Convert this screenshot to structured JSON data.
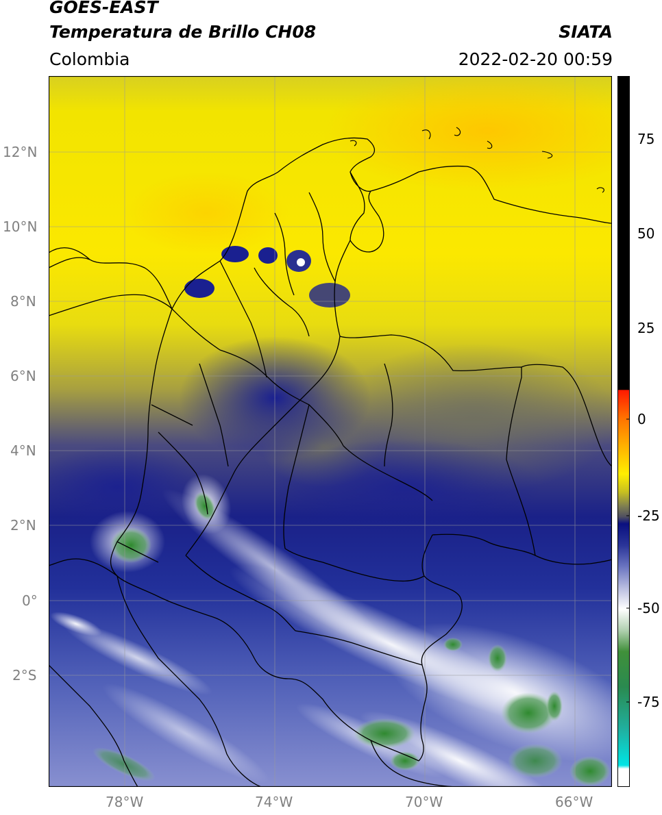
{
  "header": {
    "satellite": "GOES-EAST",
    "product": "Temperatura de Brillo CH08",
    "region": "Colombia",
    "source": "SIATA",
    "datetime": "2022-02-20 00:59"
  },
  "map": {
    "lon_range": [
      -80,
      -65
    ],
    "lat_range": [
      -4.9,
      14
    ],
    "lat_ticks": [
      "12°N",
      "10°N",
      "8°N",
      "6°N",
      "4°N",
      "2°N",
      "0°",
      "2°S"
    ],
    "lon_ticks": [
      "78°W",
      "74°W",
      "70°W",
      "66°W"
    ],
    "gridlines": true
  },
  "colorbar": {
    "ticks": [
      "75",
      "50",
      "25",
      "0",
      "-25",
      "-50",
      "-75"
    ],
    "range": [
      -95,
      90
    ],
    "colors": {
      "black": "#000000",
      "red": "#ff2200",
      "orange": "#ff9900",
      "yellow": "#ffee00",
      "olive": "#b8b030",
      "gray": "#606060",
      "navy": "#101a80",
      "blue": "#4050b0",
      "white": "#ffffff",
      "green": "#2f8a2f",
      "teal": "#20b0a0",
      "cyan": "#00e5e5"
    }
  }
}
